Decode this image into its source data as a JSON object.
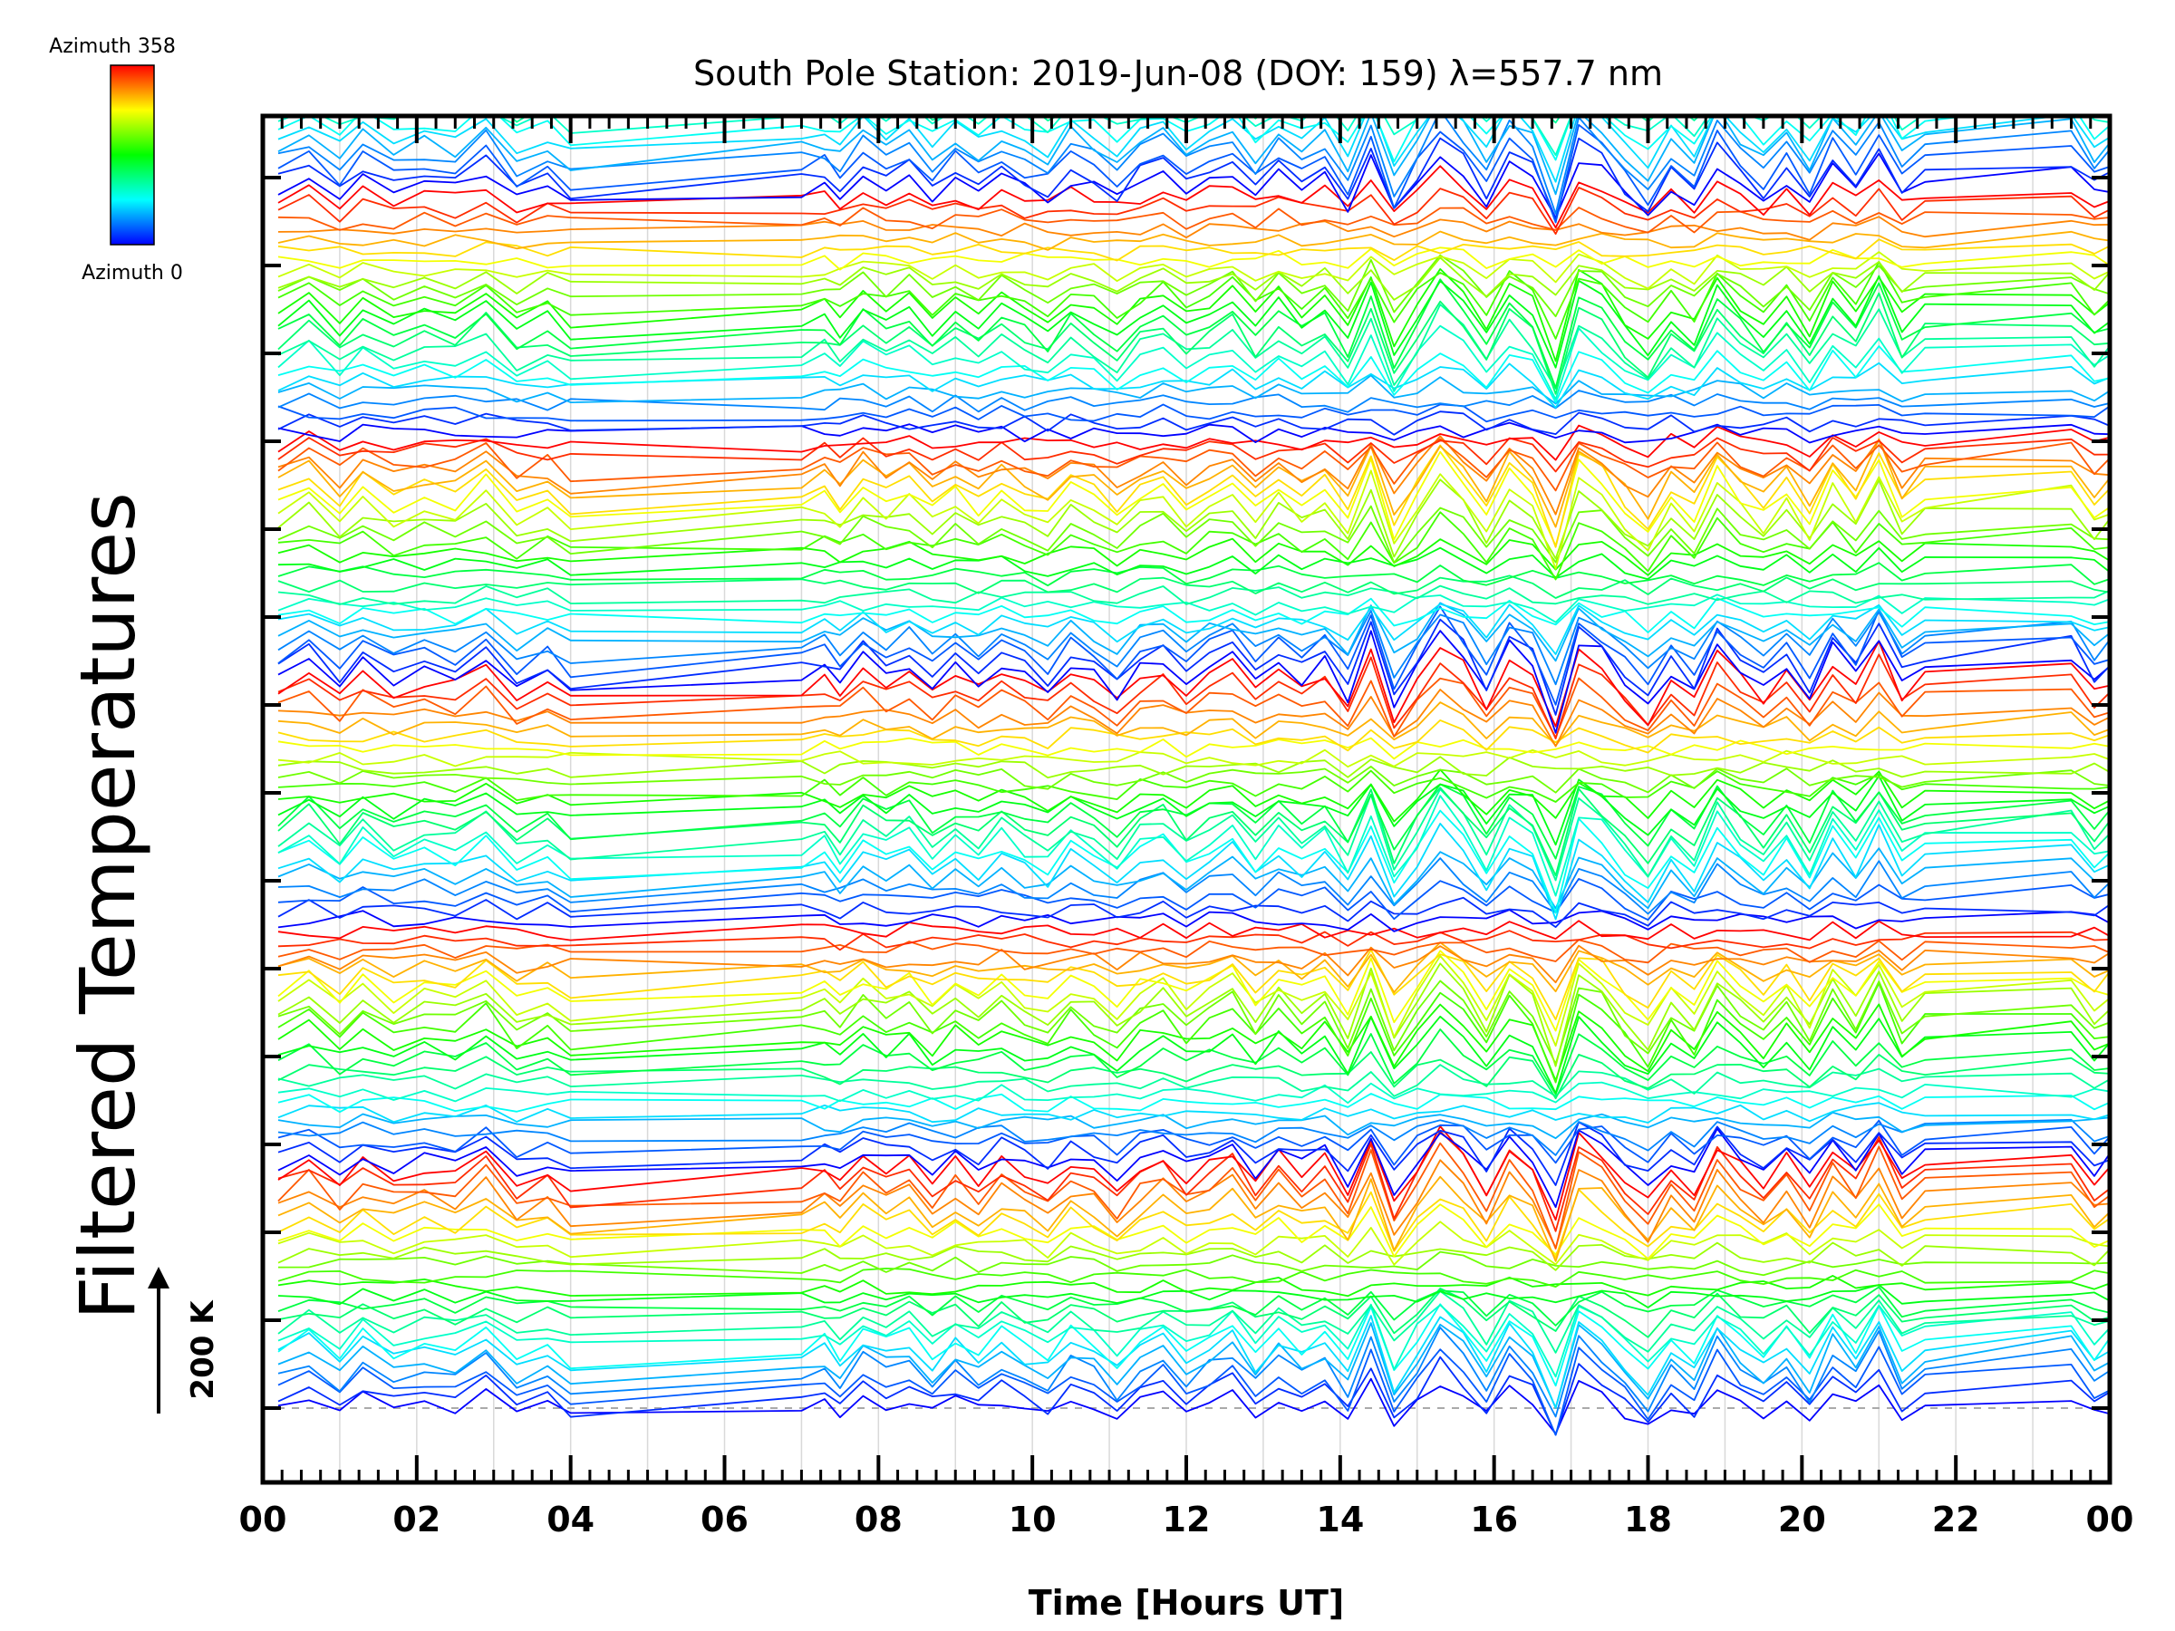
{
  "chart_data": {
    "type": "line",
    "title": "South Pole Station: 2019-Jun-08 (DOY: 159) λ=557.7 nm",
    "xlabel": "Time [Hours UT]",
    "ylabel": "Filtered Temperatures",
    "xlim": [
      0,
      24
    ],
    "x_ticks": [
      "00",
      "02",
      "04",
      "06",
      "08",
      "10",
      "12",
      "14",
      "16",
      "18",
      "20",
      "22",
      "00"
    ],
    "legend": {
      "top_label": "Azimuth 358",
      "bottom_label": "Azimuth 0",
      "colormap": [
        "#0000ff",
        "#00ffff",
        "#00ff00",
        "#ffff00",
        "#ff0000"
      ]
    },
    "scale_bar": {
      "label": "200 K",
      "value_k": 200
    },
    "stacking": {
      "n_traces": 180,
      "traces_per_group": 24,
      "offset_per_trace_k": 14,
      "baseline_k": 0
    },
    "sample_times": [
      0.2,
      0.6,
      1.0,
      1.3,
      1.7,
      2.1,
      2.5,
      2.9,
      3.3,
      3.7,
      4.0,
      7.0,
      7.3,
      7.5,
      7.8,
      8.1,
      8.4,
      8.7,
      9.0,
      9.3,
      9.6,
      9.9,
      10.2,
      10.5,
      10.8,
      11.1,
      11.4,
      11.7,
      12.0,
      12.3,
      12.6,
      12.9,
      13.2,
      13.5,
      13.8,
      14.1,
      14.4,
      14.7,
      15.0,
      15.3,
      15.6,
      15.9,
      16.2,
      16.5,
      16.8,
      17.1,
      17.4,
      17.7,
      18.0,
      18.3,
      18.6,
      18.9,
      19.2,
      19.5,
      19.8,
      20.1,
      20.4,
      20.7,
      21.0,
      21.3,
      21.6,
      23.5,
      23.8,
      24.0
    ],
    "disturbance_k": [
      0,
      25,
      -10,
      20,
      -5,
      10,
      0,
      30,
      -15,
      5,
      -20,
      0,
      10,
      -10,
      25,
      5,
      20,
      -10,
      15,
      -5,
      20,
      0,
      -15,
      20,
      5,
      -20,
      10,
      25,
      -5,
      15,
      30,
      -10,
      25,
      0,
      20,
      -25,
      50,
      -40,
      10,
      60,
      30,
      -20,
      40,
      15,
      -60,
      50,
      30,
      -10,
      -40,
      10,
      -20,
      45,
      10,
      -15,
      20,
      -25,
      35,
      0,
      55,
      -10,
      15,
      30,
      -10,
      5
    ],
    "n_gridlines_x": 24
  }
}
